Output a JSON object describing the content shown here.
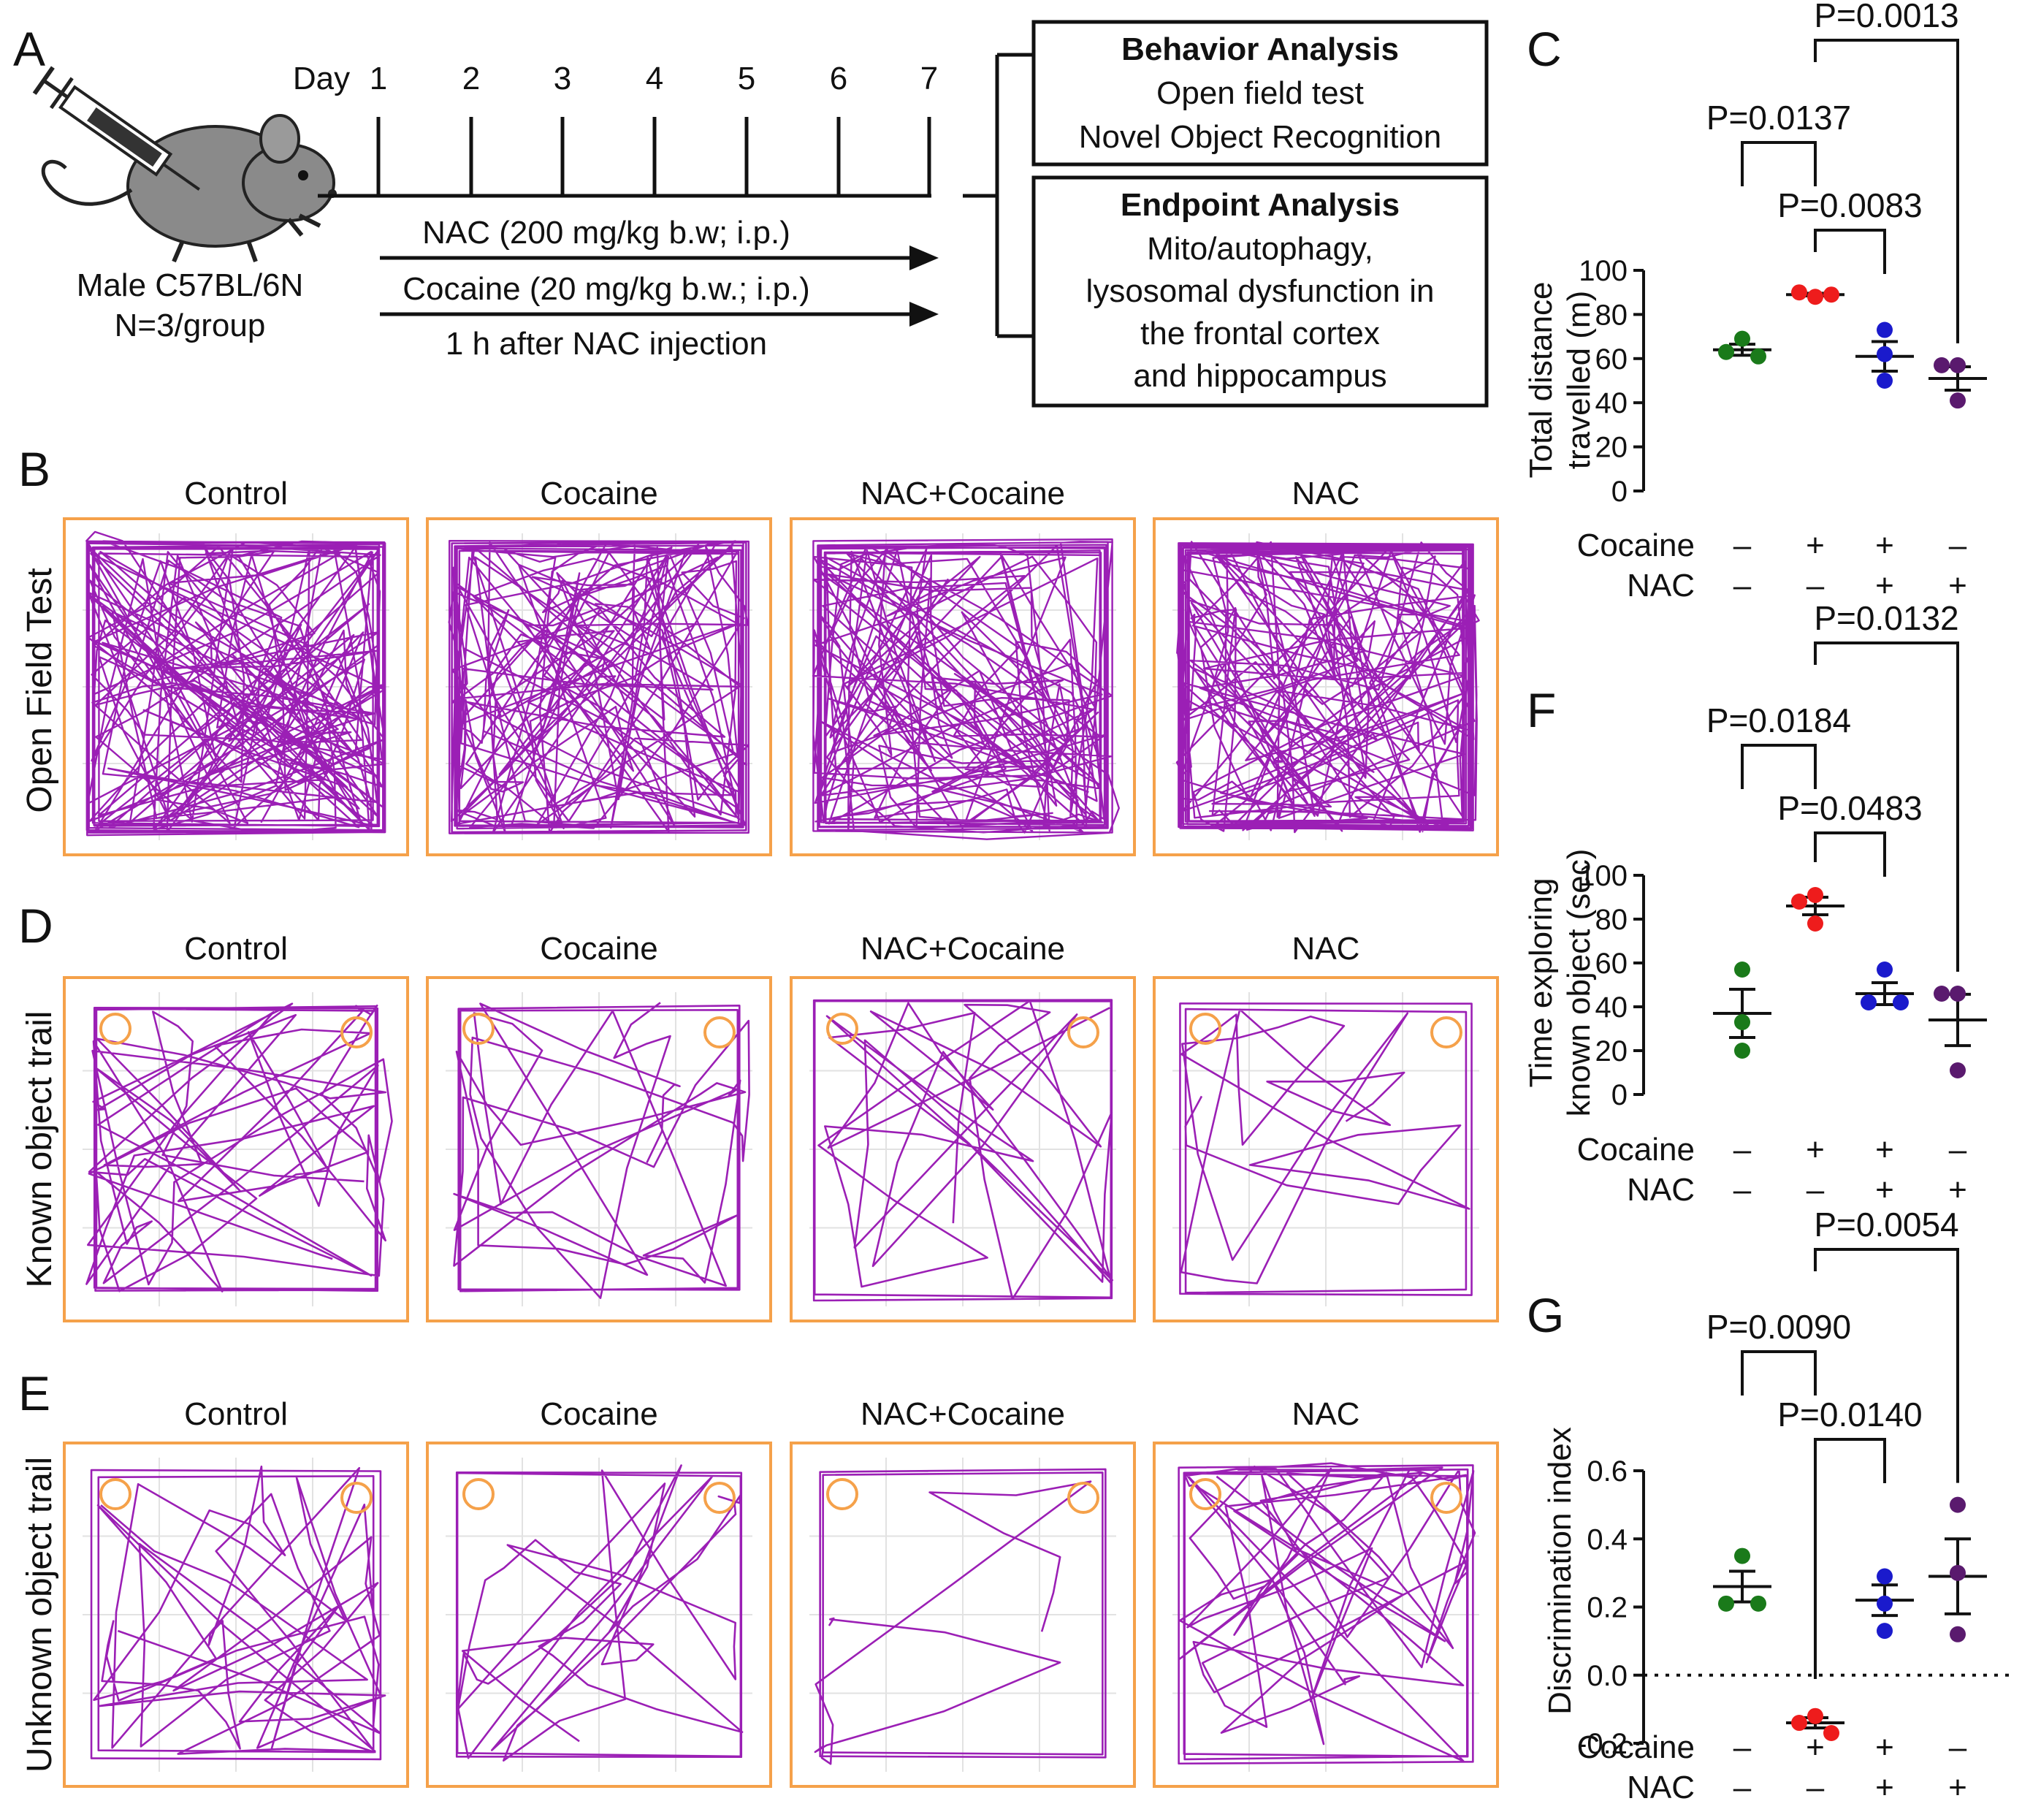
{
  "panel_a": {
    "letter": "A",
    "day_label": "Day",
    "days": [
      "1",
      "2",
      "3",
      "4",
      "5",
      "6",
      "7"
    ],
    "mouse_label_1": "Male C57BL/6N",
    "mouse_label_2": "N=3/group",
    "nac_arrow": "NAC (200 mg/kg b.w; i.p.)",
    "cocaine_arrow": "Cocaine (20 mg/kg b.w.; i.p.)",
    "cocaine_note": "1 h after NAC injection",
    "box1": {
      "title": "Behavior Analysis",
      "lines": [
        "Open field test",
        "Novel Object Recognition"
      ]
    },
    "box2": {
      "title": "Endpoint Analysis",
      "lines": [
        "Mito/autophagy,",
        "lysosomal dysfunction in",
        "the frontal cortex",
        "and hippocampus"
      ]
    }
  },
  "track_groups": [
    "Control",
    "Cocaine",
    "NAC+Cocaine",
    "NAC"
  ],
  "panel_b": {
    "letter": "B",
    "row_label": "Open Field Test"
  },
  "panel_d": {
    "letter": "D",
    "row_label": "Known object trail"
  },
  "panel_e": {
    "letter": "E",
    "row_label": "Unknown object trail"
  },
  "colors": {
    "control": "#1a7a1a",
    "cocaine": "#ee1c1c",
    "nac_cocaine": "#1a1acc",
    "nac": "#5a1a6e",
    "track": "#9b1fb5",
    "arena": "#f5a14a"
  },
  "treatment_rows": {
    "cocaine_label": "Cocaine",
    "nac_label": "NAC",
    "cocaine": [
      "–",
      "+",
      "+",
      "–"
    ],
    "nac": [
      "–",
      "–",
      "+",
      "+"
    ]
  },
  "chart_data": [
    {
      "panel": "C",
      "type": "scatter",
      "ylabel": [
        "Total distance",
        "travelled (m)"
      ],
      "ylim": [
        0,
        100
      ],
      "yticks": [
        0,
        20,
        40,
        60,
        80,
        100
      ],
      "categories": [
        "Control",
        "Cocaine",
        "NAC+Cocaine",
        "NAC"
      ],
      "series": [
        {
          "points": [
            69,
            63,
            61
          ],
          "mean": 64,
          "sem": 2.5
        },
        {
          "points": [
            88,
            90,
            89
          ],
          "mean": 89,
          "sem": 0.6
        },
        {
          "points": [
            73,
            62,
            50
          ],
          "mean": 61,
          "sem": 6.7
        },
        {
          "points": [
            57,
            57,
            41
          ],
          "mean": 51,
          "sem": 5.3
        }
      ],
      "comparisons": [
        {
          "from": 0,
          "to": 1,
          "label": "P=0.0137",
          "level": 1
        },
        {
          "from": 1,
          "to": 2,
          "label": "P=0.0083",
          "level": 0
        },
        {
          "from": 1,
          "to": 3,
          "label": "P=0.0013",
          "level": 2
        }
      ]
    },
    {
      "panel": "F",
      "type": "scatter",
      "ylabel": [
        "Time exploring",
        "known object (sec)"
      ],
      "ylim": [
        0,
        100
      ],
      "yticks": [
        0,
        20,
        40,
        60,
        80,
        100
      ],
      "categories": [
        "Control",
        "Cocaine",
        "NAC+Cocaine",
        "NAC"
      ],
      "series": [
        {
          "points": [
            57,
            33,
            20
          ],
          "mean": 37,
          "sem": 11
        },
        {
          "points": [
            91,
            88,
            78
          ],
          "mean": 86,
          "sem": 4
        },
        {
          "points": [
            57,
            42,
            42
          ],
          "mean": 46,
          "sem": 5
        },
        {
          "points": [
            46,
            46,
            11
          ],
          "mean": 34,
          "sem": 11.7
        }
      ],
      "comparisons": [
        {
          "from": 0,
          "to": 1,
          "label": "P=0.0184",
          "level": 1
        },
        {
          "from": 1,
          "to": 2,
          "label": "P=0.0483",
          "level": 0
        },
        {
          "from": 1,
          "to": 3,
          "label": "P=0.0132",
          "level": 2
        }
      ]
    },
    {
      "panel": "G",
      "type": "scatter",
      "ylabel": [
        "Discrimination index"
      ],
      "ylim": [
        -0.2,
        0.6
      ],
      "yticks": [
        -0.2,
        0.0,
        0.2,
        0.4,
        0.6
      ],
      "ytick_labels": [
        "-0.2",
        "0.0",
        "0.2",
        "0.4",
        "0.6"
      ],
      "reference_line": 0,
      "categories": [
        "Control",
        "Cocaine",
        "NAC+Cocaine",
        "NAC"
      ],
      "series": [
        {
          "points": [
            0.35,
            0.21,
            0.21
          ],
          "mean": 0.26,
          "sem": 0.045
        },
        {
          "points": [
            -0.12,
            -0.14,
            -0.17
          ],
          "mean": -0.14,
          "sem": 0.015
        },
        {
          "points": [
            0.29,
            0.21,
            0.13
          ],
          "mean": 0.22,
          "sem": 0.045
        },
        {
          "points": [
            0.5,
            0.3,
            0.12
          ],
          "mean": 0.29,
          "sem": 0.11
        }
      ],
      "comparisons": [
        {
          "from": 0,
          "to": 1,
          "label": "P=0.0090",
          "level": 1
        },
        {
          "from": 1,
          "to": 2,
          "label": "P=0.0140",
          "level": 0
        },
        {
          "from": 1,
          "to": 3,
          "label": "P=0.0054",
          "level": 2
        }
      ]
    }
  ]
}
